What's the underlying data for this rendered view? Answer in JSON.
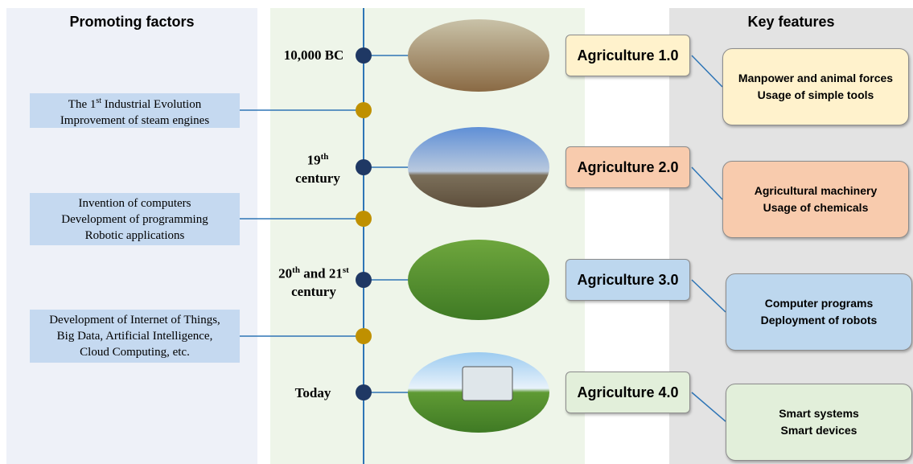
{
  "left_title": "Promoting factors",
  "right_title": "Key features",
  "eras": [
    [
      "10,000 BC"
    ],
    [
      "19",
      "th",
      "century"
    ],
    [
      "20",
      "th",
      " and 21",
      "st",
      "century"
    ],
    [
      "Today"
    ]
  ],
  "factors": [
    [
      "The 1",
      "st",
      " Industrial Evolution",
      "Improvement of steam engines"
    ],
    [
      "Invention of computers",
      "Development of programming",
      "Robotic applications"
    ],
    [
      "Development of Internet of Things,",
      "Big Data, Artificial Intelligence,",
      "Cloud Computing, etc."
    ]
  ],
  "stages": [
    "Agriculture 1.0",
    "Agriculture 2.0",
    "Agriculture 3.0",
    "Agriculture 4.0"
  ],
  "features": [
    [
      "Manpower and animal forces",
      "Usage of simple tools"
    ],
    [
      "Agricultural machinery",
      "Usage of chemicals"
    ],
    [
      "Computer programs",
      "Deployment of robots"
    ],
    [
      "Smart systems",
      "Smart devices"
    ]
  ]
}
